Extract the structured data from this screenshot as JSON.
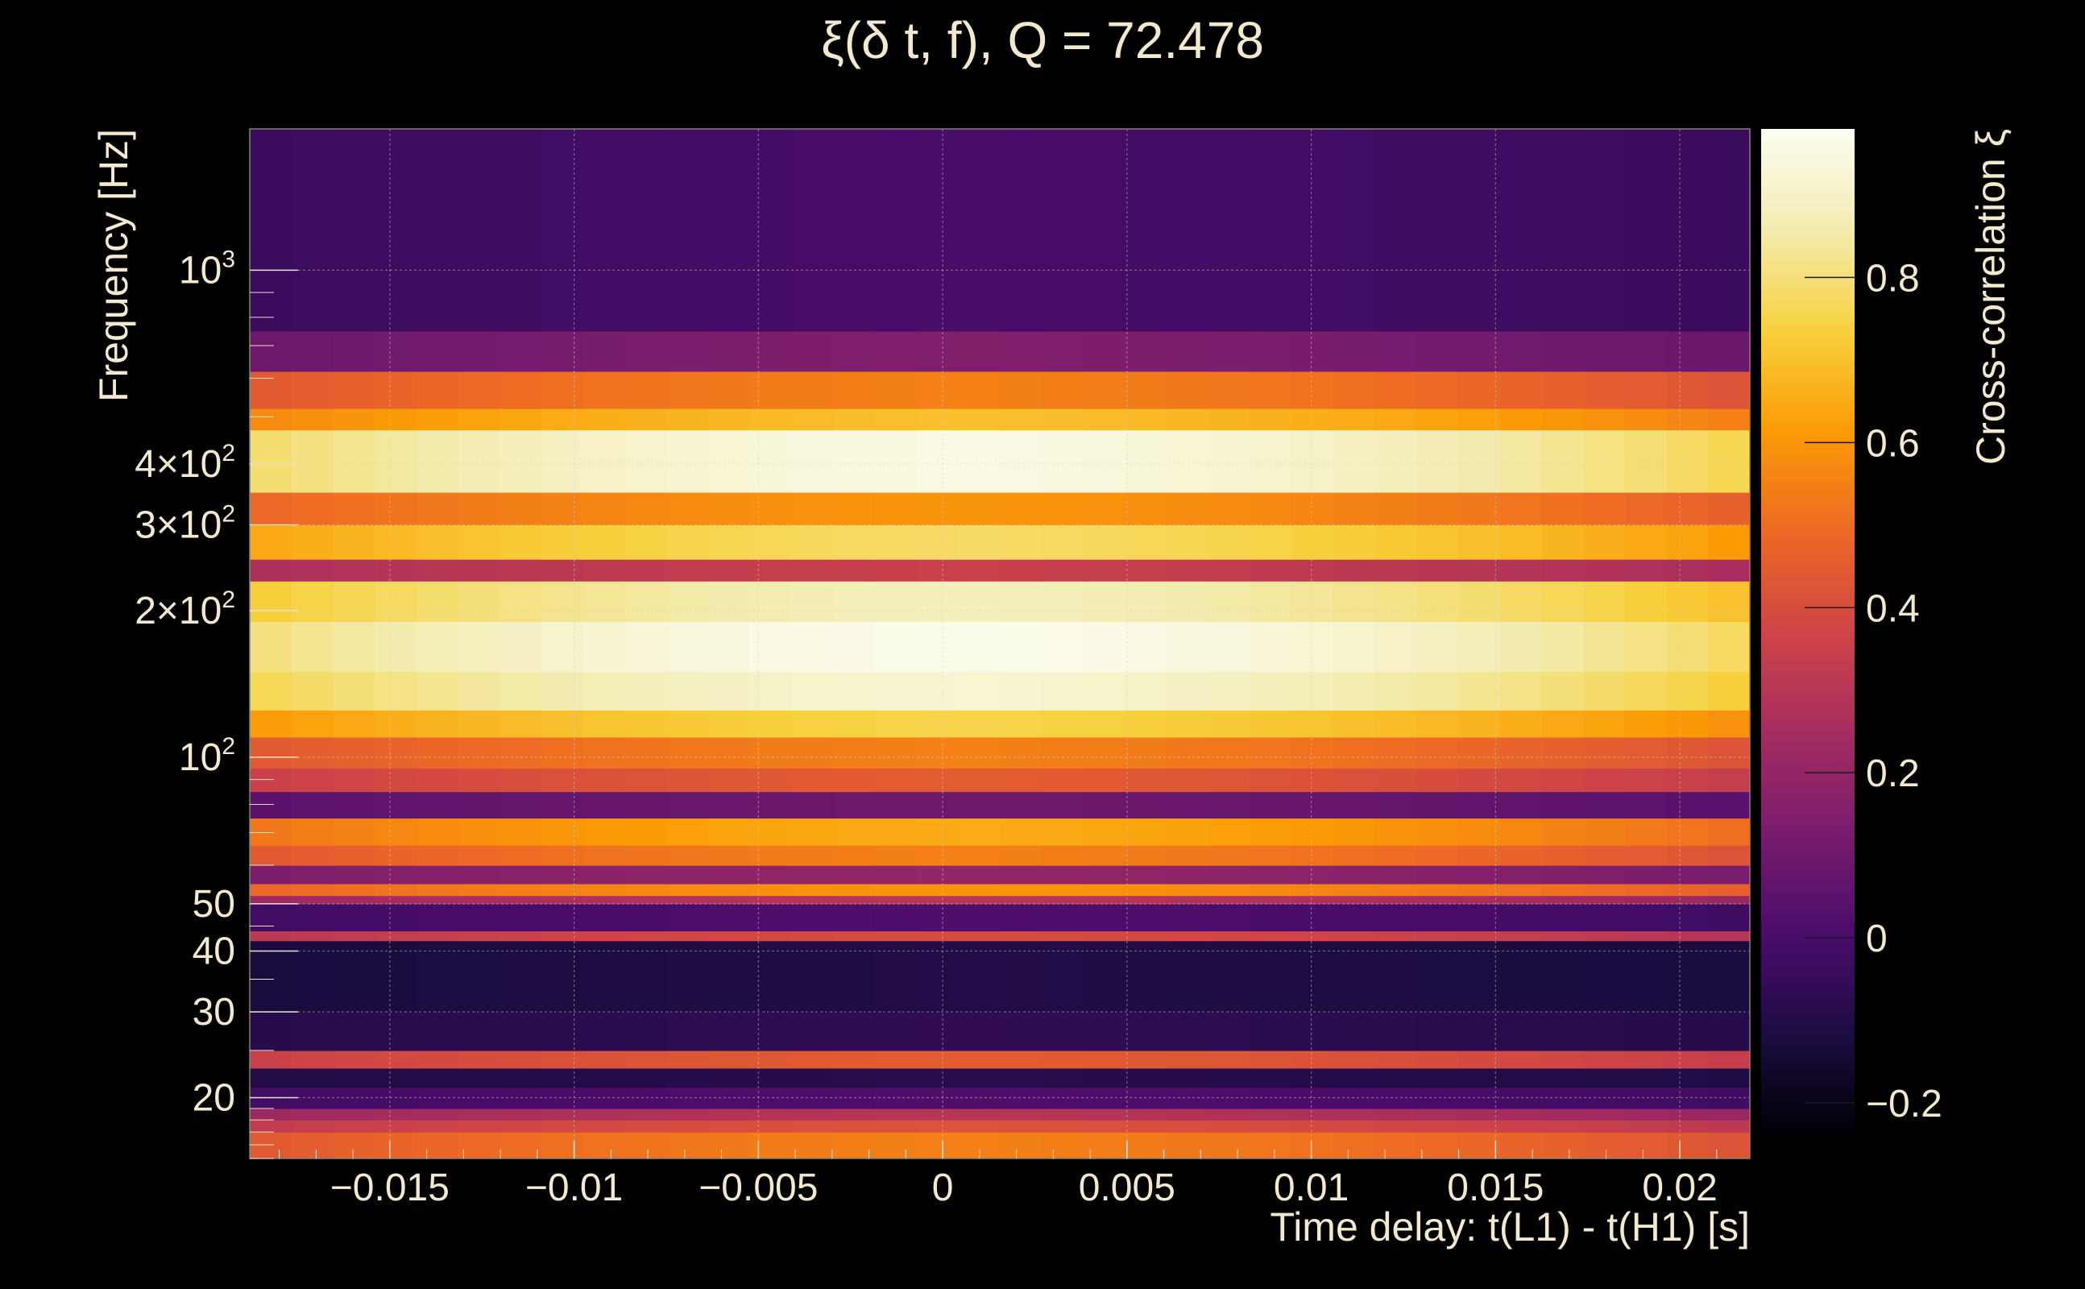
{
  "chart_data": {
    "type": "heatmap",
    "title": "ξ(δ t, f), Q = 72.478",
    "xlabel": "Time delay: t(L1) - t(H1) [s]",
    "ylabel": "Frequency [Hz]",
    "colorbar_label": "Cross-correlation ξ",
    "colormap": "inferno",
    "xlim": [
      -0.0188,
      0.0219
    ],
    "ylim": [
      15,
      1950
    ],
    "yscale": "log",
    "clim": [
      -0.24,
      0.98
    ],
    "grid": true,
    "x_ticks": [
      {
        "value": -0.015,
        "label": "−0.015"
      },
      {
        "value": -0.01,
        "label": "−0.01"
      },
      {
        "value": -0.005,
        "label": "−0.005"
      },
      {
        "value": 0,
        "label": "0"
      },
      {
        "value": 0.005,
        "label": "0.005"
      },
      {
        "value": 0.01,
        "label": "0.01"
      },
      {
        "value": 0.015,
        "label": "0.015"
      },
      {
        "value": 0.02,
        "label": "0.02"
      }
    ],
    "y_ticks": [
      {
        "value": 20,
        "label": "20"
      },
      {
        "value": 30,
        "label": "30"
      },
      {
        "value": 40,
        "label": "40"
      },
      {
        "value": 50,
        "label": "50"
      },
      {
        "value": 100,
        "mant": "10",
        "exp": "2"
      },
      {
        "value": 200,
        "mant": "2×10",
        "exp": "2"
      },
      {
        "value": 300,
        "mant": "3×10",
        "exp": "2"
      },
      {
        "value": 400,
        "mant": "4×10",
        "exp": "2"
      },
      {
        "value": 1000,
        "mant": "10",
        "exp": "3"
      }
    ],
    "colorbar_ticks": [
      {
        "value": -0.2,
        "label": "−0.2"
      },
      {
        "value": 0,
        "label": "0"
      },
      {
        "value": 0.2,
        "label": "0.2"
      },
      {
        "value": 0.4,
        "label": "0.4"
      },
      {
        "value": 0.6,
        "label": "0.6"
      },
      {
        "value": 0.8,
        "label": "0.8"
      }
    ],
    "frequency_bands": [
      {
        "f_low": 15,
        "f_high": 17,
        "peak_xi": 0.55
      },
      {
        "f_low": 17,
        "f_high": 18,
        "peak_xi": 0.42
      },
      {
        "f_low": 18,
        "f_high": 19,
        "peak_xi": 0.3
      },
      {
        "f_low": 19,
        "f_high": 21,
        "peak_xi": 0.02
      },
      {
        "f_low": 21,
        "f_high": 23,
        "peak_xi": -0.08
      },
      {
        "f_low": 23,
        "f_high": 25,
        "peak_xi": 0.45
      },
      {
        "f_low": 25,
        "f_high": 30,
        "peak_xi": -0.06
      },
      {
        "f_low": 30,
        "f_high": 42,
        "peak_xi": -0.1
      },
      {
        "f_low": 42,
        "f_high": 44,
        "peak_xi": 0.4
      },
      {
        "f_low": 44,
        "f_high": 50,
        "peak_xi": 0.02
      },
      {
        "f_low": 50,
        "f_high": 52,
        "peak_xi": 0.3
      },
      {
        "f_low": 52,
        "f_high": 55,
        "peak_xi": 0.6
      },
      {
        "f_low": 55,
        "f_high": 60,
        "peak_xi": 0.2
      },
      {
        "f_low": 60,
        "f_high": 66,
        "peak_xi": 0.55
      },
      {
        "f_low": 66,
        "f_high": 75,
        "peak_xi": 0.65
      },
      {
        "f_low": 75,
        "f_high": 85,
        "peak_xi": 0.1
      },
      {
        "f_low": 85,
        "f_high": 95,
        "peak_xi": 0.45
      },
      {
        "f_low": 95,
        "f_high": 110,
        "peak_xi": 0.55
      },
      {
        "f_low": 110,
        "f_high": 125,
        "peak_xi": 0.75
      },
      {
        "f_low": 125,
        "f_high": 150,
        "peak_xi": 0.92
      },
      {
        "f_low": 150,
        "f_high": 190,
        "peak_xi": 0.97
      },
      {
        "f_low": 190,
        "f_high": 230,
        "peak_xi": 0.88
      },
      {
        "f_low": 230,
        "f_high": 255,
        "peak_xi": 0.35
      },
      {
        "f_low": 255,
        "f_high": 300,
        "peak_xi": 0.78
      },
      {
        "f_low": 300,
        "f_high": 350,
        "peak_xi": 0.6
      },
      {
        "f_low": 350,
        "f_high": 470,
        "peak_xi": 0.95
      },
      {
        "f_low": 470,
        "f_high": 520,
        "peak_xi": 0.7
      },
      {
        "f_low": 520,
        "f_high": 620,
        "peak_xi": 0.55
      },
      {
        "f_low": 620,
        "f_high": 750,
        "peak_xi": 0.15
      },
      {
        "f_low": 750,
        "f_high": 1950,
        "peak_xi": 0.0
      }
    ]
  }
}
